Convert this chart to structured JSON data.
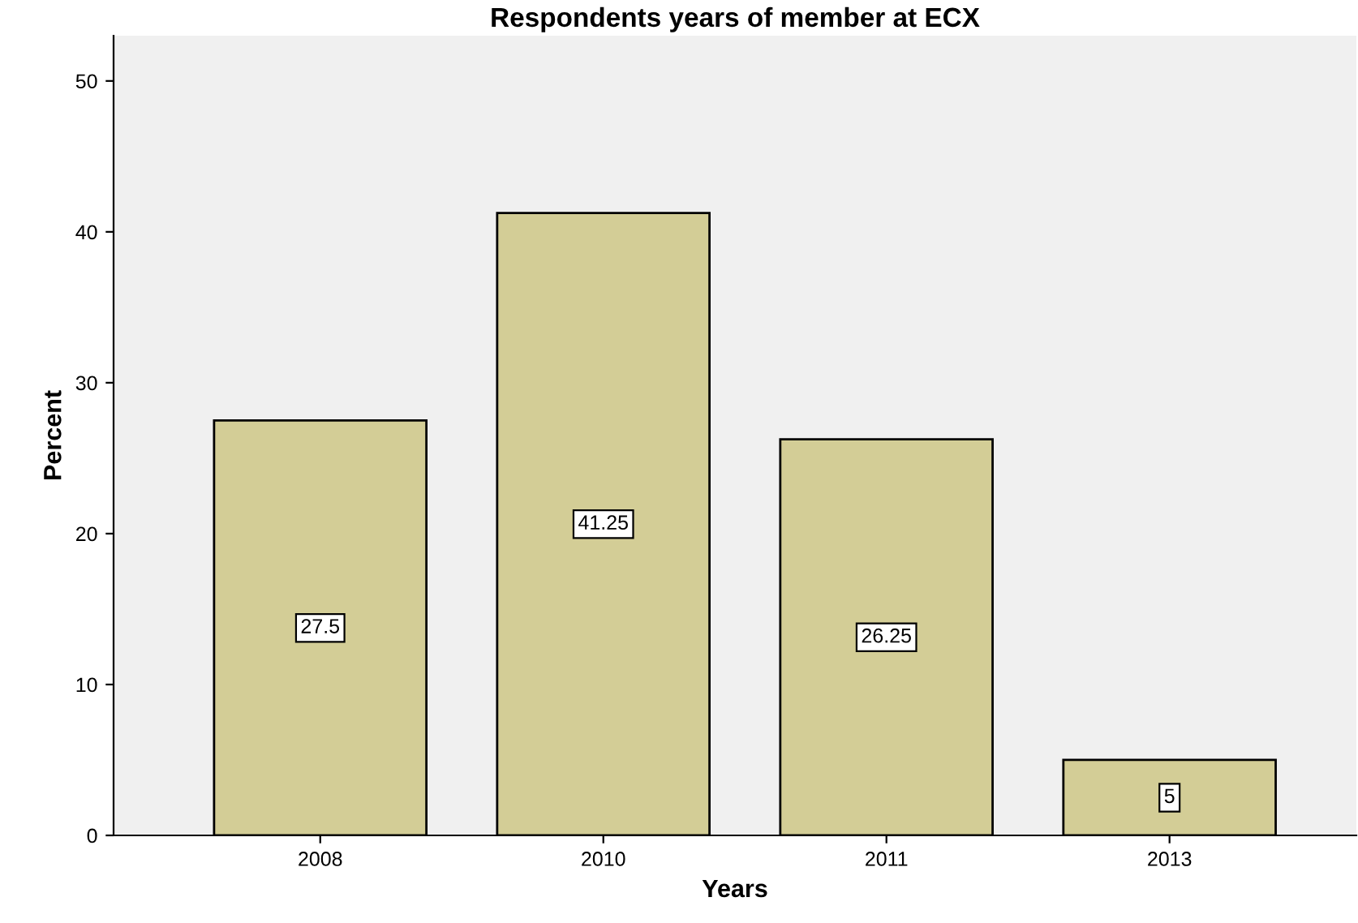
{
  "chart_data": {
    "type": "bar",
    "title": "Respondents years of member at ECX",
    "xlabel": "Years",
    "ylabel": "Percent",
    "categories": [
      "2008",
      "2010",
      "2011",
      "2013"
    ],
    "values": [
      27.5,
      41.25,
      26.25,
      5
    ],
    "color": "#d3cd96",
    "ylim": [
      0,
      53
    ],
    "yticks": [
      0,
      10,
      20,
      30,
      40,
      50
    ],
    "grid": false,
    "data_labels": true
  }
}
